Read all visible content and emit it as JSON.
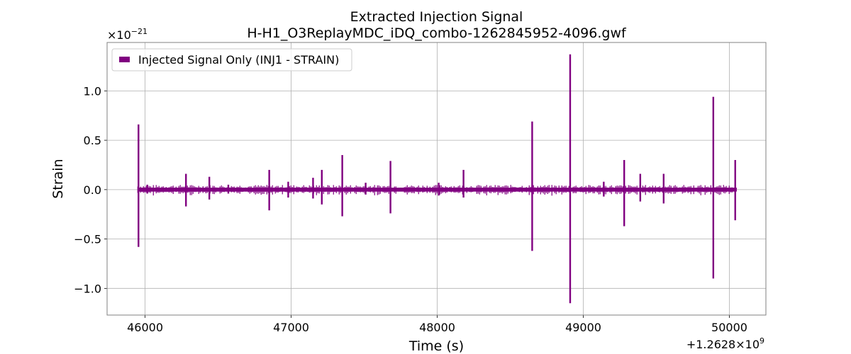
{
  "chart_data": {
    "type": "line",
    "title": "Extracted Injection Signal",
    "subtitle": "H-H1_O3ReplayMDC_iDQ_combo-1262845952-4096.gwf",
    "xlabel": "Time (s)",
    "ylabel": "Strain",
    "x_offset_label": "+1.2628×10",
    "x_offset_exponent": "9",
    "y_scale_label": "×10",
    "y_scale_exponent": "−21",
    "xlim": [
      45740,
      50250
    ],
    "ylim": [
      -1.27,
      1.49
    ],
    "xticks": [
      46000,
      47000,
      48000,
      49000,
      50000
    ],
    "xtick_labels": [
      "46000",
      "47000",
      "48000",
      "49000",
      "50000"
    ],
    "yticks": [
      -1.0,
      -0.5,
      0.0,
      0.5,
      1.0
    ],
    "ytick_labels": [
      "−1.0",
      "−0.5",
      "0.0",
      "0.5",
      "1.0"
    ],
    "grid": true,
    "legend_position": "top-left",
    "series": [
      {
        "name": "Injected Signal Only (INJ1 - STRAIN)",
        "color": "#800080",
        "x_range": [
          45950,
          50050
        ],
        "baseline_amplitude": 0.02,
        "spikes": [
          {
            "x": 45955,
            "ymax": 0.66,
            "ymin": -0.58
          },
          {
            "x": 46015,
            "ymax": 0.05,
            "ymin": -0.04
          },
          {
            "x": 46280,
            "ymax": 0.16,
            "ymin": -0.17
          },
          {
            "x": 46440,
            "ymax": 0.13,
            "ymin": -0.1
          },
          {
            "x": 46570,
            "ymax": 0.05,
            "ymin": -0.04
          },
          {
            "x": 46850,
            "ymax": 0.2,
            "ymin": -0.21
          },
          {
            "x": 46980,
            "ymax": 0.08,
            "ymin": -0.08
          },
          {
            "x": 47150,
            "ymax": 0.12,
            "ymin": -0.09
          },
          {
            "x": 47210,
            "ymax": 0.2,
            "ymin": -0.15
          },
          {
            "x": 47350,
            "ymax": 0.35,
            "ymin": -0.27
          },
          {
            "x": 47510,
            "ymax": 0.07,
            "ymin": -0.05
          },
          {
            "x": 47680,
            "ymax": 0.29,
            "ymin": -0.24
          },
          {
            "x": 48010,
            "ymax": 0.07,
            "ymin": -0.06
          },
          {
            "x": 48180,
            "ymax": 0.2,
            "ymin": -0.08
          },
          {
            "x": 48650,
            "ymax": 0.69,
            "ymin": -0.62
          },
          {
            "x": 48910,
            "ymax": 1.37,
            "ymin": -1.15
          },
          {
            "x": 49140,
            "ymax": 0.08,
            "ymin": -0.07
          },
          {
            "x": 49280,
            "ymax": 0.3,
            "ymin": -0.37
          },
          {
            "x": 49390,
            "ymax": 0.16,
            "ymin": -0.12
          },
          {
            "x": 49550,
            "ymax": 0.16,
            "ymin": -0.14
          },
          {
            "x": 49890,
            "ymax": 0.94,
            "ymin": -0.9
          },
          {
            "x": 50040,
            "ymax": 0.3,
            "ymin": -0.31
          }
        ]
      }
    ]
  }
}
